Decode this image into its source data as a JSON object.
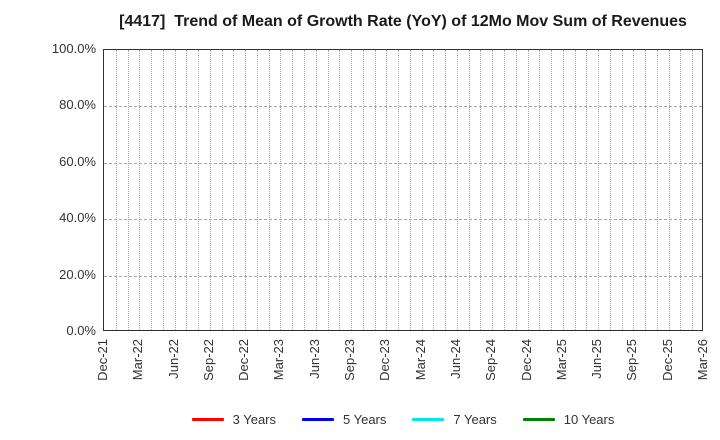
{
  "header": {
    "title": "[4417]  Trend of Mean of Growth Rate (YoY) of 12Mo Mov Sum of Revenues"
  },
  "chart_data": {
    "type": "line",
    "title": "[4417]  Trend of Mean of Growth Rate (YoY) of 12Mo Mov Sum of Revenues",
    "xlabel": "",
    "ylabel": "",
    "x_tick_labels": [
      "Dec-21",
      "Mar-22",
      "Jun-22",
      "Sep-22",
      "Dec-22",
      "Mar-23",
      "Jun-23",
      "Sep-23",
      "Dec-23",
      "Mar-24",
      "Jun-24",
      "Sep-24",
      "Dec-24",
      "Mar-25",
      "Jun-25",
      "Sep-25",
      "Dec-25",
      "Mar-26"
    ],
    "x_minor_divisions_per_interval": 3,
    "y_tick_labels": [
      "0.0%",
      "20.0%",
      "40.0%",
      "60.0%",
      "80.0%",
      "100.0%"
    ],
    "ylim": [
      0,
      100
    ],
    "grid": true,
    "grid_style": {
      "vertical": "dotted",
      "horizontal": "dashed",
      "color": "#a8a8a8"
    },
    "axis_color": "#333333",
    "plot_empty": true,
    "series": [
      {
        "name": "3 Years",
        "color": "#ff0000",
        "values": []
      },
      {
        "name": "5 Years",
        "color": "#0000ff",
        "values": []
      },
      {
        "name": "7 Years",
        "color": "#00e5e5",
        "values": []
      },
      {
        "name": "10 Years",
        "color": "#008000",
        "values": []
      }
    ],
    "legend_position": "bottom"
  }
}
